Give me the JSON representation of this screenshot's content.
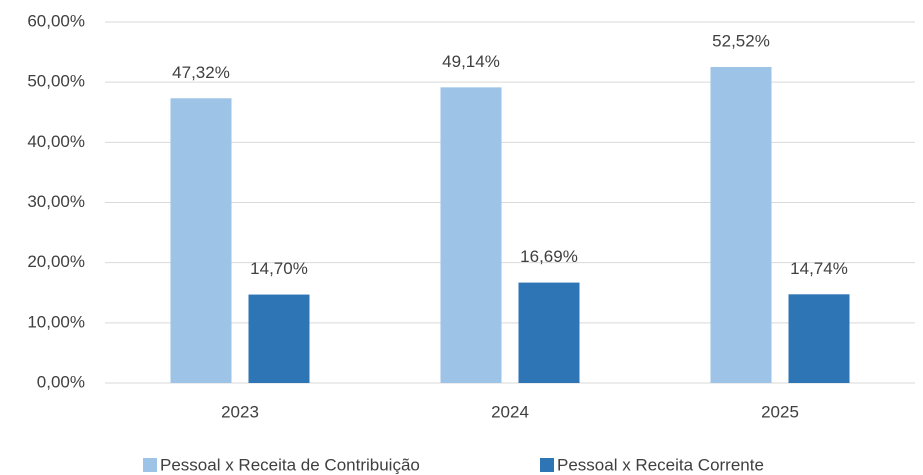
{
  "chart_data": {
    "type": "bar",
    "categories": [
      "2023",
      "2024",
      "2025"
    ],
    "series": [
      {
        "name": "Pessoal x Receita de Contribuição",
        "color": "#9dc3e6",
        "values": [
          47.32,
          49.14,
          52.52
        ],
        "value_labels": [
          "47,32%",
          "49,14%",
          "52,52%"
        ]
      },
      {
        "name": "Pessoal x Receita Corrente",
        "color": "#2e75b6",
        "values": [
          14.7,
          16.69,
          14.74
        ],
        "value_labels": [
          "14,70%",
          "16,69%",
          "14,74%"
        ]
      }
    ],
    "ylim": [
      0,
      60
    ],
    "yticks": [
      {
        "value": 0,
        "label": "0,00%"
      },
      {
        "value": 10,
        "label": "10,00%"
      },
      {
        "value": 20,
        "label": "20,00%"
      },
      {
        "value": 30,
        "label": "30,00%"
      },
      {
        "value": 40,
        "label": "40,00%"
      },
      {
        "value": 50,
        "label": "50,00%"
      },
      {
        "value": 60,
        "label": "60,00%"
      }
    ],
    "grid": true,
    "legend": "bottom"
  }
}
